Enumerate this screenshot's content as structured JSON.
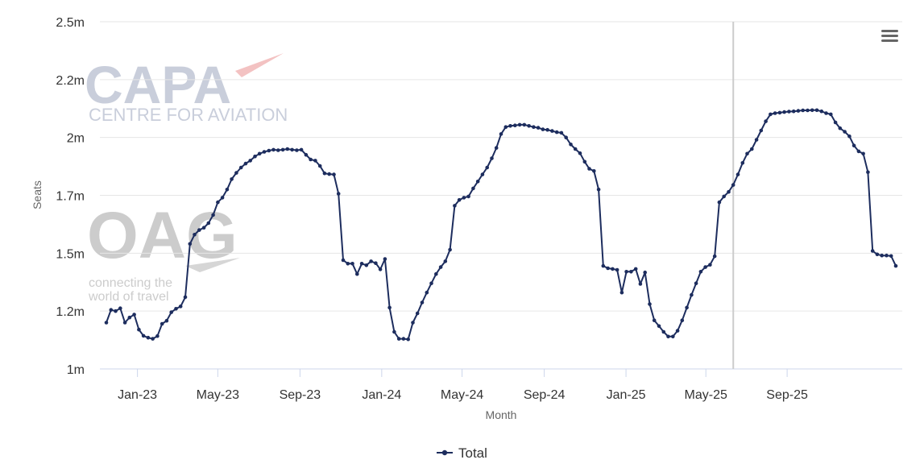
{
  "menu_icon": "hamburger-menu-icon",
  "watermarks": {
    "capa_title": "CAPA",
    "capa_subtitle": "CENTRE FOR AVIATION",
    "oag_title": "OAG",
    "oag_line1": "connecting the",
    "oag_line2": "world of travel"
  },
  "chart_data": {
    "type": "line",
    "xlabel": "Month",
    "ylabel": "Seats",
    "y_ticks": [
      "1m",
      "1.2m",
      "1.5m",
      "1.7m",
      "2m",
      "2.2m",
      "2.5m"
    ],
    "y_tick_values": [
      1.0,
      1.25,
      1.5,
      1.75,
      2.0,
      2.25,
      2.5
    ],
    "ylim": [
      1.0,
      2.5
    ],
    "x_ticks": [
      "Jan-23",
      "May-23",
      "Sep-23",
      "Jan-24",
      "May-24",
      "Sep-24",
      "Jan-25",
      "May-25",
      "Sep-25"
    ],
    "x_tick_weeks": [
      6.7,
      24.0,
      41.7,
      59.3,
      76.6,
      94.3,
      111.9,
      129.1,
      146.6
    ],
    "grid": true,
    "legend_position": "bottom-center",
    "reference_line_week": 135,
    "series": [
      {
        "name": "Total",
        "color": "#1d2d5e",
        "values": [
          1.2,
          1.255,
          1.25,
          1.262,
          1.2,
          1.222,
          1.235,
          1.17,
          1.143,
          1.135,
          1.13,
          1.142,
          1.195,
          1.208,
          1.245,
          1.26,
          1.27,
          1.31,
          1.54,
          1.58,
          1.6,
          1.61,
          1.63,
          1.665,
          1.72,
          1.74,
          1.775,
          1.82,
          1.847,
          1.87,
          1.887,
          1.9,
          1.918,
          1.93,
          1.938,
          1.943,
          1.947,
          1.945,
          1.947,
          1.95,
          1.947,
          1.945,
          1.947,
          1.925,
          1.905,
          1.9,
          1.877,
          1.845,
          1.842,
          1.84,
          1.757,
          1.47,
          1.455,
          1.455,
          1.41,
          1.455,
          1.448,
          1.465,
          1.457,
          1.43,
          1.475,
          1.265,
          1.16,
          1.13,
          1.13,
          1.128,
          1.2,
          1.24,
          1.287,
          1.33,
          1.37,
          1.41,
          1.44,
          1.465,
          1.515,
          1.705,
          1.73,
          1.74,
          1.745,
          1.78,
          1.81,
          1.84,
          1.87,
          1.91,
          1.955,
          2.015,
          2.045,
          2.05,
          2.052,
          2.055,
          2.055,
          2.05,
          2.045,
          2.042,
          2.035,
          2.033,
          2.028,
          2.023,
          2.02,
          2.0,
          1.97,
          1.95,
          1.932,
          1.895,
          1.865,
          1.855,
          1.775,
          1.445,
          1.435,
          1.432,
          1.428,
          1.33,
          1.42,
          1.42,
          1.432,
          1.367,
          1.417,
          1.28,
          1.21,
          1.185,
          1.16,
          1.14,
          1.14,
          1.165,
          1.21,
          1.265,
          1.32,
          1.37,
          1.42,
          1.44,
          1.45,
          1.487,
          1.72,
          1.745,
          1.765,
          1.795,
          1.84,
          1.89,
          1.93,
          1.95,
          1.99,
          2.03,
          2.07,
          2.1,
          2.105,
          2.107,
          2.11,
          2.112,
          2.113,
          2.115,
          2.117,
          2.117,
          2.118,
          2.118,
          2.113,
          2.105,
          2.1,
          2.065,
          2.04,
          2.025,
          2.005,
          1.965,
          1.94,
          1.93,
          1.85,
          1.51,
          1.495,
          1.49,
          1.49,
          1.488,
          1.445
        ]
      }
    ]
  }
}
